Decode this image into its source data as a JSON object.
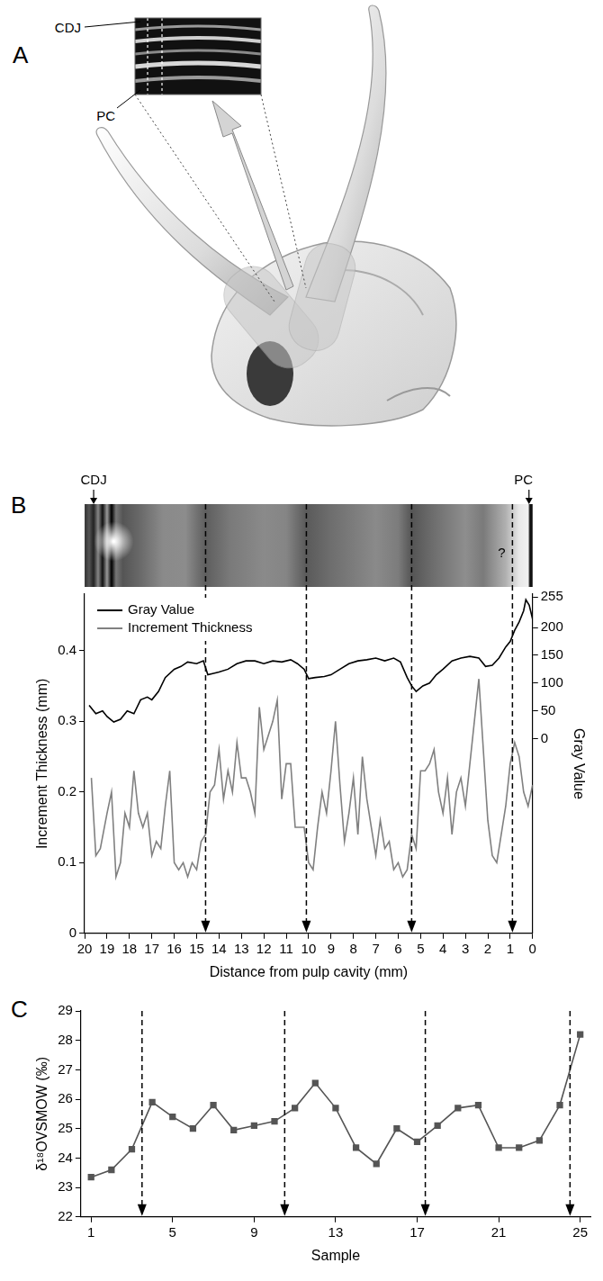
{
  "panel_a": {
    "letter": "A",
    "labels": [
      "CDJ",
      "PC"
    ]
  },
  "chart_data": [
    {
      "panel": "B",
      "type": "line",
      "x_label": "Distance from pulp cavity (mm)",
      "y_label": "Increment Thickness (mm)",
      "y2_label": "Gray Value",
      "xlim": [
        20,
        0
      ],
      "xticks": [
        20,
        19,
        18,
        17,
        16,
        15,
        14,
        13,
        12,
        11,
        10,
        9,
        8,
        7,
        6,
        5,
        4,
        3,
        2,
        1,
        0
      ],
      "ylim": [
        0,
        0.48
      ],
      "yticks": [
        0,
        0.1,
        0.2,
        0.3,
        0.4
      ],
      "y2lim": [
        -350,
        260
      ],
      "y2ticks": [
        0,
        50,
        100,
        150,
        200,
        255
      ],
      "grid": false,
      "legend": "upper left",
      "strip_labels": {
        "left": "CDJ",
        "right": "PC",
        "uncertain": "?"
      },
      "event_lines": [
        14.6,
        10.1,
        5.4,
        0.9
      ],
      "series": [
        {
          "name": "Gray Value",
          "color": "#000000",
          "axis": "y2",
          "marker": "none",
          "line_style": "solid",
          "x": [
            19.8,
            19.5,
            19.2,
            19.0,
            18.7,
            18.4,
            18.1,
            17.8,
            17.5,
            17.2,
            17.0,
            16.7,
            16.4,
            16.0,
            15.7,
            15.4,
            15.0,
            14.7,
            14.5,
            14.2,
            14.0,
            13.6,
            13.2,
            12.8,
            12.4,
            12.0,
            11.6,
            11.2,
            10.8,
            10.5,
            10.2,
            10.0,
            9.7,
            9.3,
            9.0,
            8.6,
            8.2,
            7.8,
            7.4,
            7.0,
            6.6,
            6.2,
            5.9,
            5.6,
            5.4,
            5.2,
            4.9,
            4.6,
            4.3,
            4.0,
            3.6,
            3.2,
            2.8,
            2.4,
            2.1,
            1.8,
            1.5,
            1.2,
            1.0,
            0.8,
            0.6,
            0.4,
            0.3,
            0.15,
            0.0
          ],
          "values": [
            60,
            45,
            50,
            40,
            30,
            35,
            50,
            45,
            70,
            75,
            70,
            85,
            110,
            125,
            130,
            138,
            135,
            140,
            115,
            118,
            120,
            125,
            135,
            140,
            140,
            135,
            140,
            138,
            142,
            135,
            125,
            108,
            110,
            112,
            115,
            125,
            135,
            140,
            142,
            145,
            140,
            145,
            138,
            110,
            95,
            85,
            95,
            100,
            115,
            125,
            140,
            145,
            148,
            145,
            130,
            132,
            145,
            165,
            175,
            195,
            210,
            230,
            250,
            240,
            215
          ]
        },
        {
          "name": "Increment Thickness",
          "color": "#808080",
          "marker": "none",
          "line_style": "solid",
          "x": [
            19.7,
            19.5,
            19.3,
            19.0,
            18.8,
            18.6,
            18.4,
            18.2,
            18.0,
            17.8,
            17.6,
            17.4,
            17.2,
            17.0,
            16.8,
            16.6,
            16.4,
            16.2,
            16.0,
            15.8,
            15.6,
            15.4,
            15.2,
            15.0,
            14.8,
            14.6,
            14.4,
            14.2,
            14.0,
            13.8,
            13.6,
            13.4,
            13.2,
            13.0,
            12.8,
            12.6,
            12.4,
            12.2,
            12.0,
            11.8,
            11.6,
            11.4,
            11.2,
            11.0,
            10.8,
            10.6,
            10.4,
            10.2,
            10.0,
            9.8,
            9.6,
            9.4,
            9.2,
            9.0,
            8.8,
            8.6,
            8.4,
            8.2,
            8.0,
            7.8,
            7.6,
            7.4,
            7.2,
            7.0,
            6.8,
            6.6,
            6.4,
            6.2,
            6.0,
            5.8,
            5.6,
            5.4,
            5.2,
            5.0,
            4.8,
            4.6,
            4.4,
            4.2,
            4.0,
            3.8,
            3.6,
            3.4,
            3.2,
            3.0,
            2.8,
            2.6,
            2.4,
            2.2,
            2.0,
            1.8,
            1.6,
            1.4,
            1.2,
            1.0,
            0.8,
            0.6,
            0.4,
            0.2,
            0.0
          ],
          "values": [
            0.22,
            0.11,
            0.12,
            0.17,
            0.2,
            0.08,
            0.1,
            0.17,
            0.15,
            0.23,
            0.17,
            0.15,
            0.17,
            0.11,
            0.13,
            0.12,
            0.18,
            0.23,
            0.1,
            0.09,
            0.1,
            0.08,
            0.1,
            0.09,
            0.13,
            0.14,
            0.2,
            0.21,
            0.26,
            0.19,
            0.23,
            0.2,
            0.27,
            0.22,
            0.22,
            0.2,
            0.17,
            0.32,
            0.26,
            0.28,
            0.3,
            0.33,
            0.19,
            0.24,
            0.24,
            0.15,
            0.15,
            0.15,
            0.1,
            0.09,
            0.15,
            0.2,
            0.17,
            0.23,
            0.3,
            0.21,
            0.13,
            0.17,
            0.22,
            0.14,
            0.25,
            0.19,
            0.15,
            0.11,
            0.16,
            0.12,
            0.13,
            0.09,
            0.1,
            0.08,
            0.09,
            0.14,
            0.12,
            0.23,
            0.23,
            0.24,
            0.26,
            0.2,
            0.17,
            0.22,
            0.14,
            0.2,
            0.22,
            0.18,
            0.24,
            0.3,
            0.36,
            0.26,
            0.16,
            0.11,
            0.1,
            0.14,
            0.18,
            0.24,
            0.27,
            0.25,
            0.2,
            0.18,
            0.21
          ]
        }
      ]
    },
    {
      "panel": "C",
      "type": "line",
      "x_label": "Sample",
      "y_label": "δ¹⁸OVSMOW (‰)",
      "xlim": [
        0.5,
        25.5
      ],
      "xticks": [
        1,
        5,
        9,
        13,
        17,
        21,
        25
      ],
      "ylim": [
        22,
        29
      ],
      "yticks": [
        22,
        23,
        24,
        25,
        26,
        27,
        28,
        29
      ],
      "grid": false,
      "event_lines": [
        3.5,
        10.5,
        17.4,
        24.5
      ],
      "series": [
        {
          "color": "#555555",
          "marker": "square",
          "line_style": "solid",
          "x": [
            1,
            2,
            3,
            4,
            5,
            6,
            7,
            8,
            9,
            10,
            11,
            12,
            13,
            14,
            15,
            16,
            17,
            18,
            19,
            20,
            21,
            22,
            23,
            24,
            25
          ],
          "values": [
            23.35,
            23.6,
            24.3,
            25.9,
            25.4,
            25.0,
            25.8,
            24.95,
            25.1,
            25.25,
            25.7,
            26.55,
            25.7,
            24.35,
            23.8,
            25.0,
            24.55,
            25.1,
            25.7,
            25.8,
            24.35,
            24.35,
            24.6,
            25.8,
            28.2
          ]
        }
      ]
    }
  ]
}
